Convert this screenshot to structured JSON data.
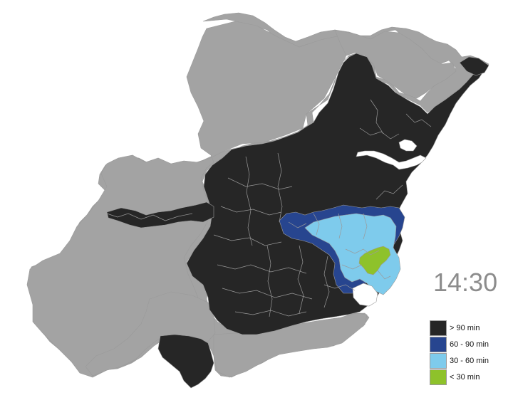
{
  "time": "14:30",
  "colors": {
    "outside": "#a3a3a3",
    "over_90": "#262626",
    "min_60_90": "#27458f",
    "min_30_60": "#7ecbec",
    "under_30": "#8ec22b",
    "boundary": "#9a9a9a",
    "water": "#ffffff"
  },
  "legend": [
    {
      "label": "> 90 min",
      "color": "#262626"
    },
    {
      "label": "60 - 90 min",
      "color": "#27458f"
    },
    {
      "label": "30 - 60 min",
      "color": "#7ecbec"
    },
    {
      "label": "< 30 min",
      "color": "#8ec22b"
    }
  ]
}
